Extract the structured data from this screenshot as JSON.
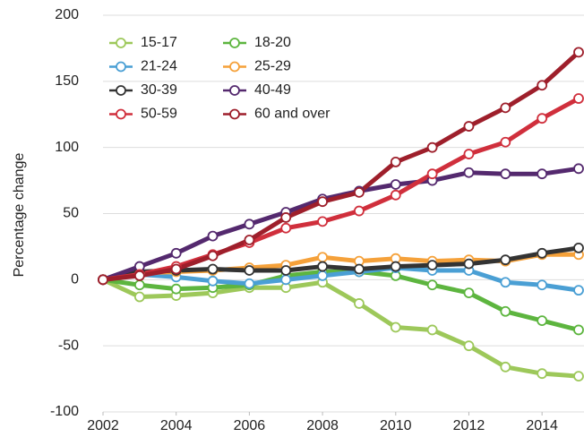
{
  "chart_data": {
    "type": "line",
    "y_label": "Percentage change",
    "x": [
      2002,
      2003,
      2004,
      2005,
      2006,
      2007,
      2008,
      2009,
      2010,
      2011,
      2012,
      2013,
      2014,
      2015
    ],
    "xlim": [
      2002,
      2015
    ],
    "xticks": [
      2002,
      2004,
      2006,
      2008,
      2010,
      2012,
      2014
    ],
    "ylim": [
      -100,
      200
    ],
    "yticks": [
      -100,
      -50,
      0,
      50,
      100,
      150,
      200
    ],
    "grid": true,
    "legend": "upper left",
    "series": [
      {
        "name": "15-17",
        "color": "#9dc85a",
        "values": [
          0,
          -13,
          -12,
          -10,
          -6,
          -6,
          -2,
          -18,
          -36,
          -38,
          -50,
          -66,
          -71,
          -73
        ]
      },
      {
        "name": "18-20",
        "color": "#5db53f",
        "values": [
          0,
          -4,
          -7,
          -6,
          -4,
          3,
          6,
          6,
          3,
          -4,
          -10,
          -24,
          -31,
          -38
        ]
      },
      {
        "name": "21-24",
        "color": "#4a9fd4",
        "values": [
          0,
          4,
          2,
          -1,
          -3,
          0,
          3,
          6,
          9,
          7,
          7,
          -2,
          -4,
          -8
        ]
      },
      {
        "name": "25-29",
        "color": "#f5a13a",
        "values": [
          0,
          5,
          6,
          7,
          9,
          11,
          17,
          14,
          16,
          14,
          15,
          14,
          19,
          19
        ]
      },
      {
        "name": "30-39",
        "color": "#333333",
        "values": [
          0,
          6,
          7,
          8,
          7,
          7,
          10,
          8,
          10,
          11,
          12,
          15,
          20,
          24
        ]
      },
      {
        "name": "40-49",
        "color": "#54296e",
        "values": [
          0,
          10,
          20,
          33,
          42,
          51,
          61,
          67,
          72,
          75,
          81,
          80,
          80,
          84
        ]
      },
      {
        "name": "50-59",
        "color": "#d02f3c",
        "values": [
          0,
          4,
          10,
          19,
          28,
          39,
          44,
          52,
          64,
          80,
          95,
          104,
          122,
          137
        ]
      },
      {
        "name": "60 and over",
        "color": "#9e1f2b",
        "values": [
          0,
          3,
          8,
          18,
          30,
          47,
          59,
          66,
          89,
          100,
          116,
          130,
          147,
          172
        ]
      }
    ]
  }
}
